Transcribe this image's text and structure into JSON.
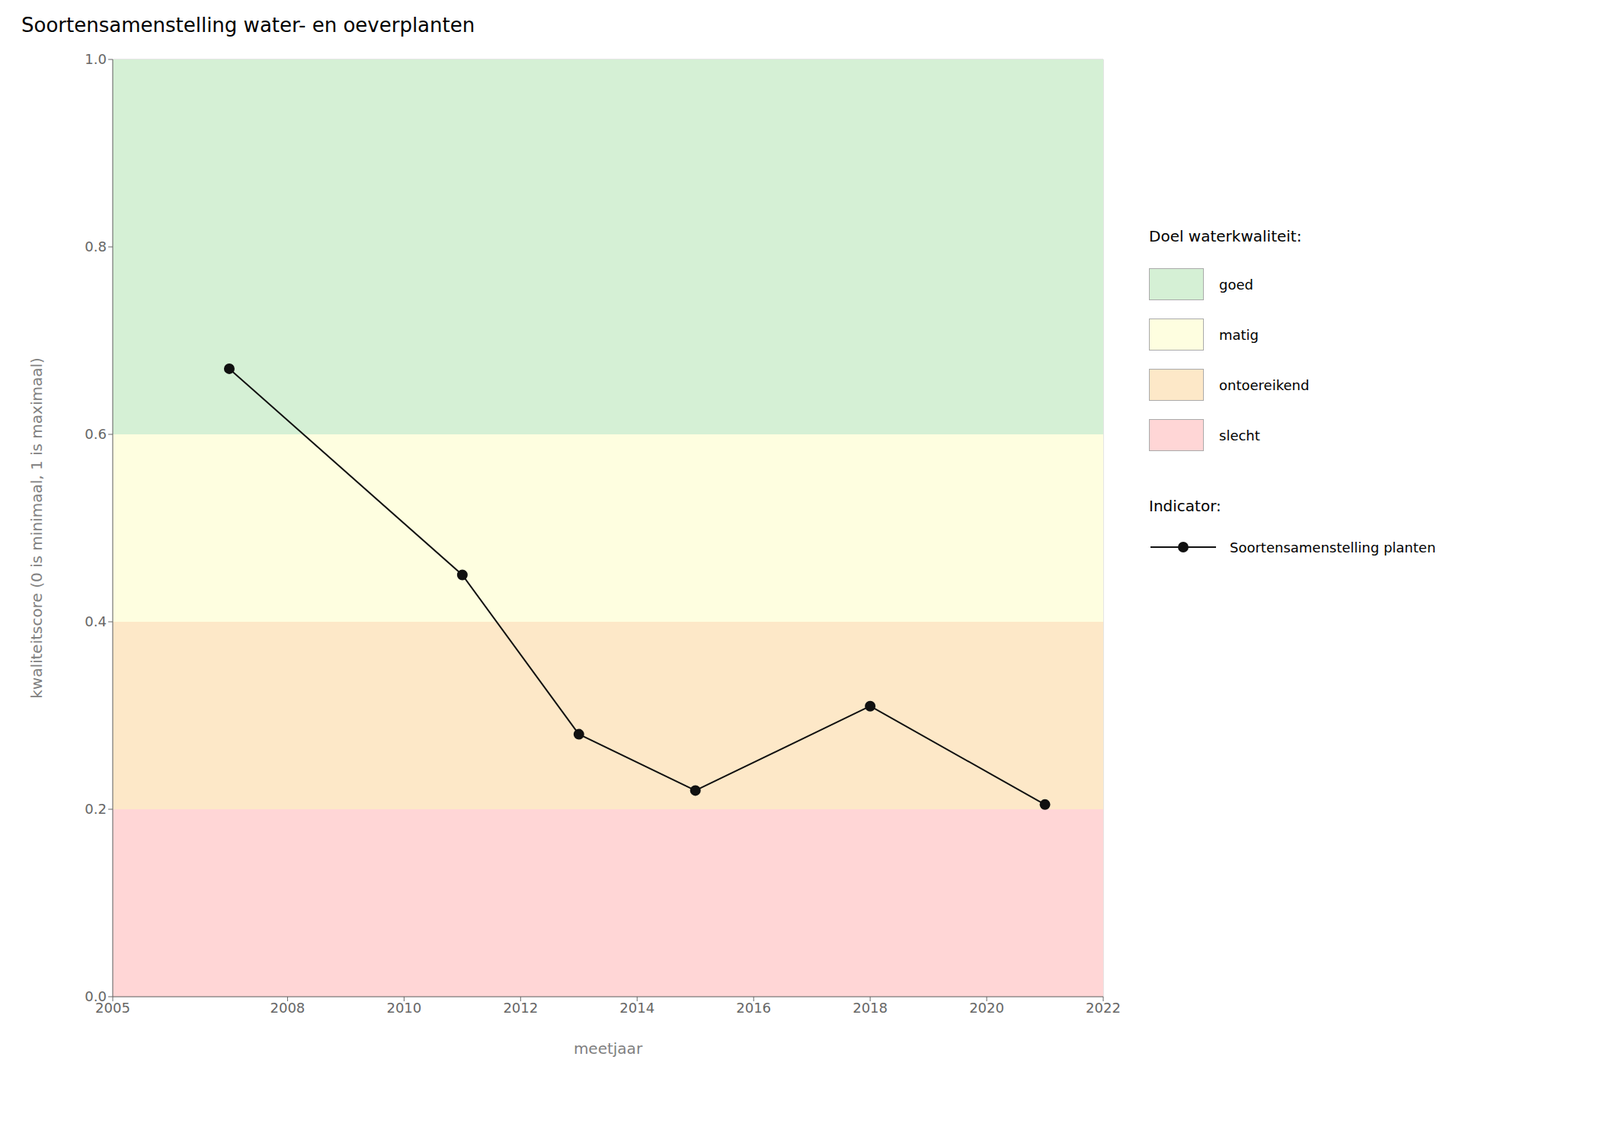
{
  "chart_data": {
    "type": "line",
    "title": "Soortensamenstelling water- en oeverplanten",
    "x_label": "meetjaar",
    "y_label": "kwaliteitscore (0 is minimaal, 1 is maximaal)",
    "x": [
      2007,
      2011,
      2013,
      2015,
      2018,
      2021
    ],
    "series": [
      {
        "name": "Soortensamenstelling planten",
        "color": "#111111",
        "marker": "o",
        "values": [
          0.67,
          0.45,
          0.28,
          0.22,
          0.31,
          0.205
        ]
      }
    ],
    "xlim": [
      2005,
      2022
    ],
    "ylim": [
      0.0,
      1.0
    ],
    "xticks": [
      2005,
      2008,
      2010,
      2012,
      2014,
      2016,
      2018,
      2020,
      2022
    ],
    "yticks": [
      {
        "value": 0.0,
        "label": "0.0"
      },
      0.2,
      0.4,
      0.6,
      0.8,
      {
        "value": 1.0,
        "label": "1.0"
      }
    ],
    "bands": [
      {
        "ymin": 0.6,
        "ymax": 1.0,
        "color": "#d5f0d5",
        "label": "goed"
      },
      {
        "ymin": 0.4,
        "ymax": 0.6,
        "color": "#fefee0",
        "label": "matig"
      },
      {
        "ymin": 0.2,
        "ymax": 0.4,
        "color": "#fde8c8",
        "label": "ontoereikend"
      },
      {
        "ymin": 0.0,
        "ymax": 0.2,
        "color": "#ffd6d6",
        "label": "slecht"
      }
    ],
    "legend_title": "Doel waterkwaliteit:",
    "indicator_title": "Indicator:",
    "grid": true,
    "legend": "right"
  }
}
